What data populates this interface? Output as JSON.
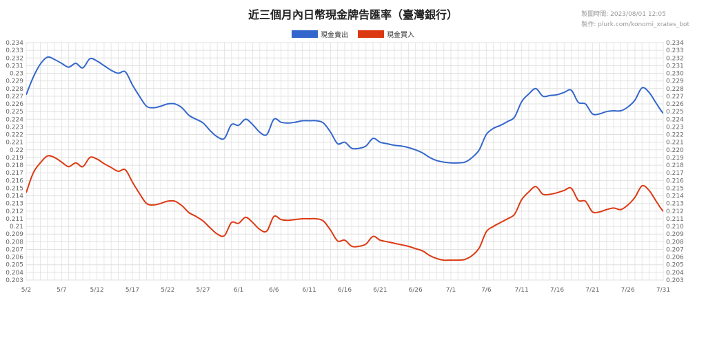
{
  "title": "近三個月內日幣現金牌告匯率（臺灣銀行）",
  "meta": {
    "drawn_time": "製圖時間: 2023/08/01 12:05",
    "author": "製作: plurk.com/konomi_xrates_bot"
  },
  "legend": [
    {
      "label": "現金賣出",
      "color": "#3366cc"
    },
    {
      "label": "現金買入",
      "color": "#dc3912"
    }
  ],
  "chart_data": {
    "type": "line",
    "title": "近三個月內日幣現金牌告匯率（臺灣銀行）",
    "x_start": "5/2",
    "x_end": "7/31",
    "x_ticks": [
      "5/2",
      "5/7",
      "5/12",
      "5/17",
      "5/22",
      "5/27",
      "6/1",
      "6/6",
      "6/11",
      "6/16",
      "6/21",
      "6/26",
      "7/1",
      "7/6",
      "7/11",
      "7/16",
      "7/21",
      "7/26",
      "7/31"
    ],
    "ylim": [
      0.203,
      0.234
    ],
    "y_ticks": [
      "0.203",
      "0.204",
      "0.205",
      "0.206",
      "0.207",
      "0.208",
      "0.209",
      "0.21",
      "0.211",
      "0.212",
      "0.213",
      "0.214",
      "0.215",
      "0.216",
      "0.217",
      "0.218",
      "0.219",
      "0.22",
      "0.221",
      "0.222",
      "0.223",
      "0.224",
      "0.225",
      "0.226",
      "0.227",
      "0.228",
      "0.229",
      "0.23",
      "0.231",
      "0.232",
      "0.233",
      "0.234"
    ],
    "y_ticks_right": [
      "0.203",
      "0.204",
      "0.205",
      "0.206",
      "0.207",
      "0.208",
      "0.209",
      "0.210",
      "0.211",
      "0.212",
      "0.213",
      "0.214",
      "0.215",
      "0.216",
      "0.217",
      "0.218",
      "0.219",
      "0.220",
      "0.221",
      "0.222",
      "0.223",
      "0.224",
      "0.225",
      "0.226",
      "0.227",
      "0.228",
      "0.229",
      "0.230",
      "0.231",
      "0.232",
      "0.233",
      "0.234"
    ],
    "grid": true,
    "legend_position": "top-center",
    "series": [
      {
        "name": "現金賣出",
        "color": "#3366cc",
        "points": [
          [
            "5/2",
            0.2272
          ],
          [
            "5/3",
            0.2295
          ],
          [
            "5/4",
            0.2312
          ],
          [
            "5/5",
            0.2321
          ],
          [
            "5/6",
            0.2318
          ],
          [
            "5/7",
            0.2313
          ],
          [
            "5/8",
            0.2308
          ],
          [
            "5/9",
            0.2313
          ],
          [
            "5/10",
            0.2307
          ],
          [
            "5/11",
            0.2319
          ],
          [
            "5/12",
            0.2316
          ],
          [
            "5/13",
            0.231
          ],
          [
            "5/14",
            0.2304
          ],
          [
            "5/15",
            0.23
          ],
          [
            "5/16",
            0.2302
          ],
          [
            "5/17",
            0.2285
          ],
          [
            "5/18",
            0.227
          ],
          [
            "5/19",
            0.2257
          ],
          [
            "5/20",
            0.2255
          ],
          [
            "5/21",
            0.2257
          ],
          [
            "5/22",
            0.226
          ],
          [
            "5/23",
            0.226
          ],
          [
            "5/24",
            0.2255
          ],
          [
            "5/25",
            0.2245
          ],
          [
            "5/26",
            0.224
          ],
          [
            "5/27",
            0.2235
          ],
          [
            "5/28",
            0.2225
          ],
          [
            "5/29",
            0.2217
          ],
          [
            "5/30",
            0.2215
          ],
          [
            "5/31",
            0.2233
          ],
          [
            "6/1",
            0.2232
          ],
          [
            "6/2",
            0.224
          ],
          [
            "6/3",
            0.2233
          ],
          [
            "6/4",
            0.2223
          ],
          [
            "6/5",
            0.222
          ],
          [
            "6/6",
            0.224
          ],
          [
            "6/7",
            0.2236
          ],
          [
            "6/8",
            0.2235
          ],
          [
            "6/9",
            0.2236
          ],
          [
            "6/10",
            0.2238
          ],
          [
            "6/11",
            0.2238
          ],
          [
            "6/12",
            0.2238
          ],
          [
            "6/13",
            0.2235
          ],
          [
            "6/14",
            0.2223
          ],
          [
            "6/15",
            0.2208
          ],
          [
            "6/16",
            0.221
          ],
          [
            "6/17",
            0.2202
          ],
          [
            "6/18",
            0.2202
          ],
          [
            "6/19",
            0.2205
          ],
          [
            "6/20",
            0.2215
          ],
          [
            "6/21",
            0.221
          ],
          [
            "6/22",
            0.2208
          ],
          [
            "6/23",
            0.2206
          ],
          [
            "6/24",
            0.2205
          ],
          [
            "6/25",
            0.2203
          ],
          [
            "6/26",
            0.22
          ],
          [
            "6/27",
            0.2196
          ],
          [
            "6/28",
            0.219
          ],
          [
            "6/29",
            0.2186
          ],
          [
            "6/30",
            0.2184
          ],
          [
            "7/1",
            0.2183
          ],
          [
            "7/2",
            0.2183
          ],
          [
            "7/3",
            0.2184
          ],
          [
            "7/4",
            0.219
          ],
          [
            "7/5",
            0.22
          ],
          [
            "7/6",
            0.222
          ],
          [
            "7/7",
            0.2228
          ],
          [
            "7/8",
            0.2232
          ],
          [
            "7/9",
            0.2237
          ],
          [
            "7/10",
            0.2243
          ],
          [
            "7/11",
            0.2263
          ],
          [
            "7/12",
            0.2273
          ],
          [
            "7/13",
            0.228
          ],
          [
            "7/14",
            0.227
          ],
          [
            "7/15",
            0.2271
          ],
          [
            "7/16",
            0.2272
          ],
          [
            "7/17",
            0.2275
          ],
          [
            "7/18",
            0.2278
          ],
          [
            "7/19",
            0.2262
          ],
          [
            "7/20",
            0.226
          ],
          [
            "7/21",
            0.2247
          ],
          [
            "7/22",
            0.2247
          ],
          [
            "7/23",
            0.225
          ],
          [
            "7/24",
            0.2251
          ],
          [
            "7/25",
            0.2251
          ],
          [
            "7/26",
            0.2256
          ],
          [
            "7/27",
            0.2265
          ],
          [
            "7/28",
            0.2281
          ],
          [
            "7/29",
            0.2275
          ],
          [
            "7/30",
            0.2261
          ],
          [
            "7/31",
            0.2248
          ],
          [
            "8/1",
            0.2246
          ]
        ]
      },
      {
        "name": "現金買入",
        "color": "#dc3912",
        "points": [
          [
            "5/2",
            0.2144
          ],
          [
            "5/3",
            0.217
          ],
          [
            "5/4",
            0.2183
          ],
          [
            "5/5",
            0.2192
          ],
          [
            "5/6",
            0.219
          ],
          [
            "5/7",
            0.2184
          ],
          [
            "5/8",
            0.2178
          ],
          [
            "5/9",
            0.2183
          ],
          [
            "5/10",
            0.2178
          ],
          [
            "5/11",
            0.219
          ],
          [
            "5/12",
            0.2188
          ],
          [
            "5/13",
            0.2182
          ],
          [
            "5/14",
            0.2177
          ],
          [
            "5/15",
            0.2172
          ],
          [
            "5/16",
            0.2174
          ],
          [
            "5/17",
            0.2158
          ],
          [
            "5/18",
            0.2143
          ],
          [
            "5/19",
            0.213
          ],
          [
            "5/20",
            0.2128
          ],
          [
            "5/21",
            0.213
          ],
          [
            "5/22",
            0.2133
          ],
          [
            "5/23",
            0.2133
          ],
          [
            "5/24",
            0.2127
          ],
          [
            "5/25",
            0.2118
          ],
          [
            "5/26",
            0.2113
          ],
          [
            "5/27",
            0.2107
          ],
          [
            "5/28",
            0.2098
          ],
          [
            "5/29",
            0.209
          ],
          [
            "5/30",
            0.2088
          ],
          [
            "5/31",
            0.2105
          ],
          [
            "6/1",
            0.2104
          ],
          [
            "6/2",
            0.2112
          ],
          [
            "6/3",
            0.2105
          ],
          [
            "6/4",
            0.2096
          ],
          [
            "6/5",
            0.2094
          ],
          [
            "6/6",
            0.2113
          ],
          [
            "6/7",
            0.2109
          ],
          [
            "6/8",
            0.2108
          ],
          [
            "6/9",
            0.2109
          ],
          [
            "6/10",
            0.211
          ],
          [
            "6/11",
            0.211
          ],
          [
            "6/12",
            0.211
          ],
          [
            "6/13",
            0.2107
          ],
          [
            "6/14",
            0.2095
          ],
          [
            "6/15",
            0.2081
          ],
          [
            "6/16",
            0.2082
          ],
          [
            "6/17",
            0.2074
          ],
          [
            "6/18",
            0.2074
          ],
          [
            "6/19",
            0.2077
          ],
          [
            "6/20",
            0.2087
          ],
          [
            "6/21",
            0.2082
          ],
          [
            "6/22",
            0.208
          ],
          [
            "6/23",
            0.2078
          ],
          [
            "6/24",
            0.2076
          ],
          [
            "6/25",
            0.2074
          ],
          [
            "6/26",
            0.2071
          ],
          [
            "6/27",
            0.2068
          ],
          [
            "6/28",
            0.2062
          ],
          [
            "6/29",
            0.2058
          ],
          [
            "6/30",
            0.2056
          ],
          [
            "7/1",
            0.2056
          ],
          [
            "7/2",
            0.2056
          ],
          [
            "7/3",
            0.2057
          ],
          [
            "7/4",
            0.2062
          ],
          [
            "7/5",
            0.2072
          ],
          [
            "7/6",
            0.2093
          ],
          [
            "7/7",
            0.21
          ],
          [
            "7/8",
            0.2105
          ],
          [
            "7/9",
            0.211
          ],
          [
            "7/10",
            0.2116
          ],
          [
            "7/11",
            0.2135
          ],
          [
            "7/12",
            0.2145
          ],
          [
            "7/13",
            0.2152
          ],
          [
            "7/14",
            0.2142
          ],
          [
            "7/15",
            0.2142
          ],
          [
            "7/16",
            0.2144
          ],
          [
            "7/17",
            0.2147
          ],
          [
            "7/18",
            0.215
          ],
          [
            "7/19",
            0.2134
          ],
          [
            "7/20",
            0.2133
          ],
          [
            "7/21",
            0.2119
          ],
          [
            "7/22",
            0.2119
          ],
          [
            "7/23",
            0.2122
          ],
          [
            "7/24",
            0.2124
          ],
          [
            "7/25",
            0.2122
          ],
          [
            "7/26",
            0.2128
          ],
          [
            "7/27",
            0.2138
          ],
          [
            "7/28",
            0.2153
          ],
          [
            "7/29",
            0.2147
          ],
          [
            "7/30",
            0.2133
          ],
          [
            "7/31",
            0.212
          ],
          [
            "8/1",
            0.2118
          ]
        ]
      }
    ]
  }
}
